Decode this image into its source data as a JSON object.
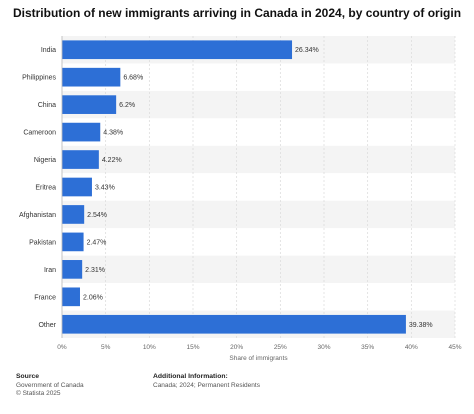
{
  "chart_data": {
    "type": "bar",
    "orientation": "horizontal",
    "title": "Distribution of new immigrants arriving in Canada in 2024, by country of origin",
    "xlabel": "Share of immigrants",
    "ylabel": "",
    "categories": [
      "India",
      "Philippines",
      "China",
      "Cameroon",
      "Nigeria",
      "Eritrea",
      "Afghanistan",
      "Pakistan",
      "Iran",
      "France",
      "Other"
    ],
    "values": [
      26.34,
      6.68,
      6.2,
      4.38,
      4.22,
      3.43,
      2.54,
      2.47,
      2.31,
      2.06,
      39.38
    ],
    "value_labels": [
      "26.34%",
      "6.68%",
      "6.2%",
      "4.38%",
      "4.22%",
      "3.43%",
      "2.54%",
      "2.47%",
      "2.31%",
      "2.06%",
      "39.38%"
    ],
    "xlim": [
      0,
      45
    ],
    "x_ticks": [
      "0%",
      "5%",
      "10%",
      "15%",
      "20%",
      "25%",
      "30%",
      "35%",
      "40%",
      "45%"
    ],
    "grid": true,
    "bar_color": "#2d6fd6"
  },
  "footer": {
    "source_heading": "Source",
    "source_lines": [
      "Government of Canada",
      "© Statista 2025"
    ],
    "info_heading": "Additional Information:",
    "info_lines": [
      "Canada; 2024; Permanent Residents"
    ]
  }
}
